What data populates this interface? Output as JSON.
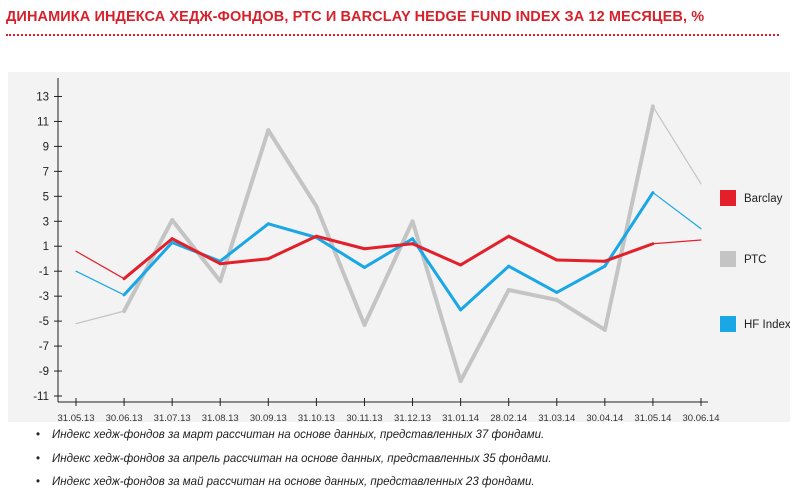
{
  "title": "ДИНАМИКА ИНДЕКСА ХЕДЖ-ФОНДОВ, РТС И BARCLAY HEDGE FUND INDEX ЗА 12 МЕСЯЦЕВ, %",
  "colors": {
    "title": "#d8202a",
    "barclay": "#e3202a",
    "rts": "#c4c4c4",
    "hf_index": "#1aa7e6",
    "panel": "#f3f3f3"
  },
  "chart_data": {
    "type": "line",
    "x": [
      "31.05.13",
      "30.06.13",
      "31.07.13",
      "31.08.13",
      "30.09.13",
      "31.10.13",
      "30.11.13",
      "31.12.13",
      "31.01.14",
      "28.02.14",
      "31.03.14",
      "30.04.14",
      "31.05.14",
      "30.06.14"
    ],
    "ylim": [
      -11,
      14
    ],
    "yticks": [
      -11,
      -9,
      -7,
      -5,
      -3,
      -1,
      1,
      3,
      5,
      7,
      9,
      11,
      13
    ],
    "grid": false,
    "legend_position": "right",
    "series": [
      {
        "name": "Barclay",
        "color": "#e3202a",
        "values": [
          0.6,
          -1.6,
          1.6,
          -0.4,
          0.0,
          1.8,
          0.8,
          1.2,
          -0.5,
          1.8,
          -0.1,
          -0.2,
          1.2,
          1.5
        ]
      },
      {
        "name": "РТС",
        "color": "#c4c4c4",
        "values": [
          -5.2,
          -4.2,
          3.1,
          -1.8,
          10.3,
          4.2,
          -5.3,
          3.0,
          -9.8,
          -2.5,
          -3.3,
          -5.7,
          12.2,
          6.0
        ]
      },
      {
        "name": "HF Index",
        "color": "#1aa7e6",
        "values": [
          -1.0,
          -2.9,
          1.3,
          -0.2,
          2.8,
          1.7,
          -0.7,
          1.6,
          -4.1,
          -0.6,
          -2.7,
          -0.6,
          5.3,
          2.4
        ]
      }
    ]
  },
  "notes": [
    "Индекс хедж-фондов за март рассчитан на основе данных, представленных 37 фондами.",
    "Индекс хедж-фондов за апрель рассчитан на основе данных, представленных 35 фондами.",
    "Индекс хедж-фондов за май рассчитан на основе данных, представленных 23 фондами."
  ]
}
